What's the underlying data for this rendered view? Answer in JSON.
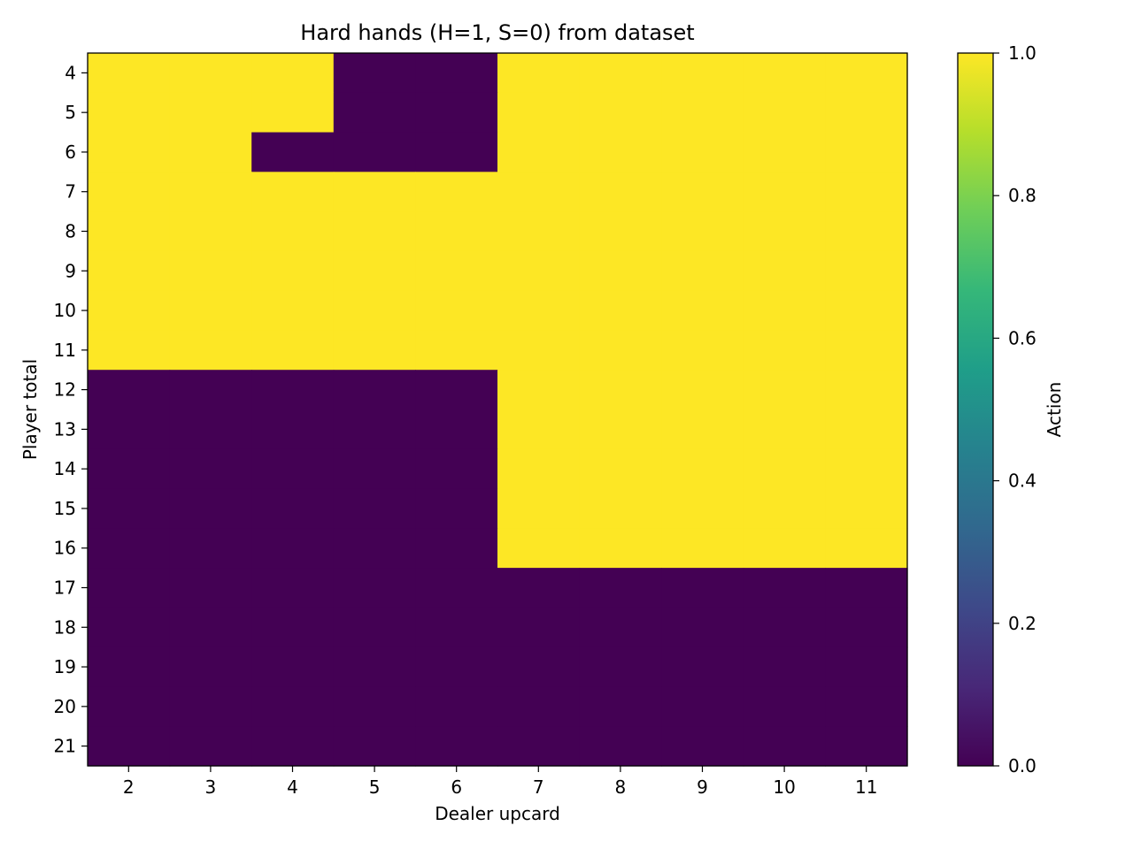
{
  "chart_data": {
    "type": "heatmap",
    "title": "Hard hands (H=1, S=0) from dataset",
    "xlabel": "Dealer upcard",
    "ylabel": "Player total",
    "x_categories": [
      "2",
      "3",
      "4",
      "5",
      "6",
      "7",
      "8",
      "9",
      "10",
      "11"
    ],
    "y_categories": [
      "4",
      "5",
      "6",
      "7",
      "8",
      "9",
      "10",
      "11",
      "12",
      "13",
      "14",
      "15",
      "16",
      "17",
      "18",
      "19",
      "20",
      "21"
    ],
    "values": [
      [
        1,
        1,
        1,
        0,
        0,
        1,
        1,
        1,
        1,
        1
      ],
      [
        1,
        1,
        1,
        0,
        0,
        1,
        1,
        1,
        1,
        1
      ],
      [
        1,
        1,
        0,
        0,
        0,
        1,
        1,
        1,
        1,
        1
      ],
      [
        1,
        1,
        1,
        1,
        1,
        1,
        1,
        1,
        1,
        1
      ],
      [
        1,
        1,
        1,
        1,
        1,
        1,
        1,
        1,
        1,
        1
      ],
      [
        1,
        1,
        1,
        1,
        1,
        1,
        1,
        1,
        1,
        1
      ],
      [
        1,
        1,
        1,
        1,
        1,
        1,
        1,
        1,
        1,
        1
      ],
      [
        1,
        1,
        1,
        1,
        1,
        1,
        1,
        1,
        1,
        1
      ],
      [
        0,
        0,
        0,
        0,
        0,
        1,
        1,
        1,
        1,
        1
      ],
      [
        0,
        0,
        0,
        0,
        0,
        1,
        1,
        1,
        1,
        1
      ],
      [
        0,
        0,
        0,
        0,
        0,
        1,
        1,
        1,
        1,
        1
      ],
      [
        0,
        0,
        0,
        0,
        0,
        1,
        1,
        1,
        1,
        1
      ],
      [
        0,
        0,
        0,
        0,
        0,
        1,
        1,
        1,
        1,
        1
      ],
      [
        0,
        0,
        0,
        0,
        0,
        0,
        0,
        0,
        0,
        0
      ],
      [
        0,
        0,
        0,
        0,
        0,
        0,
        0,
        0,
        0,
        0
      ],
      [
        0,
        0,
        0,
        0,
        0,
        0,
        0,
        0,
        0,
        0
      ],
      [
        0,
        0,
        0,
        0,
        0,
        0,
        0,
        0,
        0,
        0
      ],
      [
        0,
        0,
        0,
        0,
        0,
        0,
        0,
        0,
        0,
        0
      ]
    ],
    "colormap": "viridis",
    "colormap_stops": [
      "#440154",
      "#482878",
      "#3e4989",
      "#31688e",
      "#26828e",
      "#1f9e89",
      "#35b779",
      "#6ece58",
      "#b5de2b",
      "#fde725"
    ],
    "colorbar": {
      "label": "Action",
      "range": [
        0.0,
        1.0
      ],
      "ticks": [
        "0.0",
        "0.2",
        "0.4",
        "0.6",
        "0.8",
        "1.0"
      ]
    },
    "grid": false,
    "legend": "none"
  }
}
